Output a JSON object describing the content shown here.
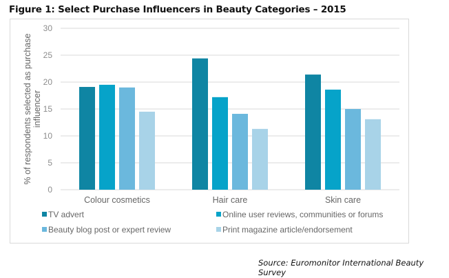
{
  "figure": {
    "title": "Figure 1: Select Purchase Influencers in Beauty Categories – 2015",
    "source": "Source: Euromonitor International Beauty Survey"
  },
  "chart_data": {
    "type": "bar",
    "title": "Figure 1: Select Purchase Influencers in Beauty Categories – 2015",
    "xlabel": "",
    "ylabel": "% of respondents selected as purchase influencer",
    "ylabel_lines": [
      "% of respondents selected as purchase",
      "influencer"
    ],
    "ylim": [
      0,
      30
    ],
    "yticks": [
      0,
      5,
      10,
      15,
      20,
      25,
      30
    ],
    "grid": true,
    "legend_position": "bottom",
    "categories": [
      "Colour cosmetics",
      "Hair care",
      "Skin care"
    ],
    "series": [
      {
        "name": "TV advert",
        "color": "#0f85a3",
        "values": [
          19.1,
          24.4,
          21.4
        ]
      },
      {
        "name": "Online user reviews, communities or forums",
        "color": "#06a3c9",
        "values": [
          19.5,
          17.2,
          18.6
        ]
      },
      {
        "name": "Beauty blog post or expert review",
        "color": "#6bb8dd",
        "values": [
          19.0,
          14.1,
          15.0
        ]
      },
      {
        "name": "Print magazine article/endorsement",
        "color": "#a8d3e8",
        "values": [
          14.5,
          11.3,
          13.1
        ]
      }
    ]
  }
}
